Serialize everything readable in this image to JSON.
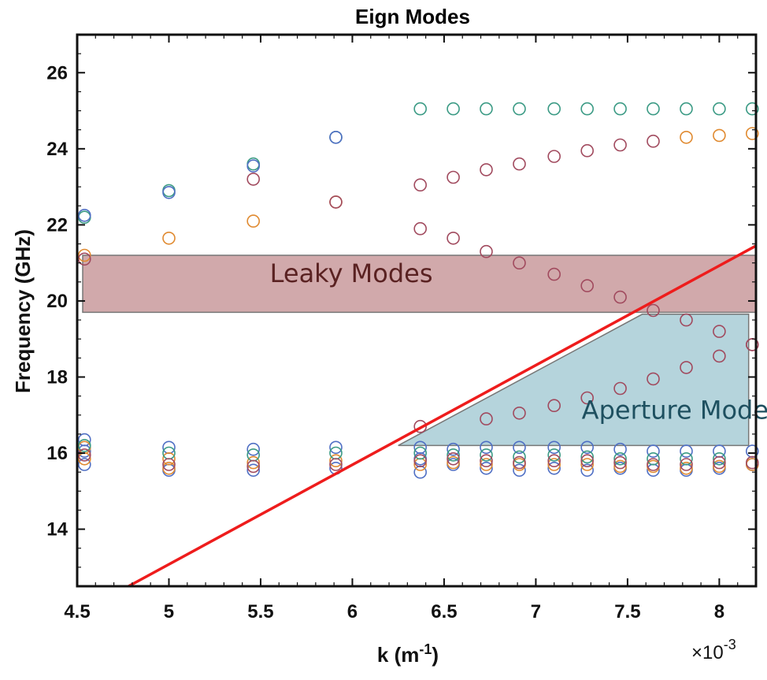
{
  "chart_data": {
    "type": "scatter",
    "title": "Eign Modes",
    "xlabel_base": "k (m",
    "xlabel_exp": "-1",
    "xlabel_tail": ")",
    "xexp_base": "×10",
    "xexp_power": "-3",
    "ylabel": "Frequency (GHz)",
    "xlim": [
      4.5,
      8.2
    ],
    "ylim": [
      12.5,
      27.0
    ],
    "xticks": [
      4.5,
      5,
      5.5,
      6,
      6.5,
      7,
      7.5,
      8
    ],
    "xtick_labels": [
      "4.5",
      "5",
      "5.5",
      "6",
      "6.5",
      "7",
      "7.5",
      "8"
    ],
    "yticks": [
      14,
      16,
      18,
      20,
      22,
      24,
      26
    ],
    "ytick_labels": [
      "14",
      "16",
      "18",
      "20",
      "22",
      "24",
      "26"
    ],
    "grid": false,
    "colors": {
      "teal": "#3a9a84",
      "orange": "#e08a30",
      "maroon": "#a14a5e",
      "blue": "#4f6fc4",
      "line": "#ee1c1c",
      "leaky_fill": "#c99a9c",
      "aperture_fill": "#a8ccd6",
      "text_leaky": "#5a2222",
      "text_aperture": "#1e5060"
    },
    "regions": [
      {
        "label": "Leaky Modes",
        "color": "leaky_fill",
        "text_color": "text_leaky",
        "polygon": [
          [
            4.53,
            21.2
          ],
          [
            8.2,
            21.2
          ],
          [
            8.2,
            19.7
          ],
          [
            4.53,
            19.7
          ]
        ],
        "label_pos": [
          5.55,
          20.5
        ]
      },
      {
        "label": "Aperture Modes",
        "color": "aperture_fill",
        "text_color": "text_aperture",
        "polygon": [
          [
            6.25,
            16.2
          ],
          [
            7.58,
            19.65
          ],
          [
            8.16,
            19.65
          ],
          [
            8.16,
            16.2
          ]
        ],
        "label_pos": [
          7.25,
          16.9
        ]
      }
    ],
    "line": {
      "name": "light line",
      "color": "line",
      "x": [
        4.78,
        8.2
      ],
      "y": [
        12.5,
        21.45
      ]
    },
    "series": [
      {
        "color": "teal",
        "x": [
          4.54,
          5.0,
          5.46,
          5.91,
          6.37,
          6.55,
          6.73,
          6.91,
          7.1,
          7.28,
          7.46,
          7.64,
          7.82,
          8.0,
          8.18
        ],
        "y": [
          22.2,
          22.9,
          23.6,
          24.3,
          25.05,
          25.05,
          25.05,
          25.05,
          25.05,
          25.05,
          25.05,
          25.05,
          25.05,
          25.05,
          25.05
        ]
      },
      {
        "color": "blue",
        "x": [
          4.54,
          5.0,
          5.46,
          5.91
        ],
        "y": [
          22.25,
          22.85,
          23.55,
          24.3
        ]
      },
      {
        "color": "orange",
        "x": [
          4.54,
          5.0,
          5.46,
          5.91,
          7.82,
          8.0,
          8.18
        ],
        "y": [
          21.2,
          21.65,
          22.1,
          22.6,
          24.3,
          24.35,
          24.4
        ]
      },
      {
        "color": "maroon",
        "x": [
          4.54,
          5.46,
          5.91,
          6.37,
          6.55,
          6.73,
          6.91,
          7.1,
          7.28,
          7.46,
          7.64
        ],
        "y": [
          21.1,
          23.2,
          22.6,
          23.05,
          23.25,
          23.45,
          23.6,
          23.8,
          23.95,
          24.1,
          24.2
        ]
      },
      {
        "color": "maroon",
        "x": [
          6.37,
          6.55,
          6.73,
          6.91,
          7.1,
          7.28,
          7.46,
          7.64,
          7.82,
          8.0,
          8.18
        ],
        "y": [
          21.9,
          21.65,
          21.3,
          21.0,
          20.7,
          20.4,
          20.1,
          19.75,
          19.5,
          19.2,
          18.85
        ]
      },
      {
        "color": "maroon",
        "x": [
          6.37,
          6.73,
          6.91,
          7.1,
          7.28,
          7.46,
          7.64,
          7.82,
          8.0,
          8.18
        ],
        "y": [
          16.7,
          16.9,
          17.05,
          17.25,
          17.45,
          17.7,
          17.95,
          18.25,
          18.55,
          18.85
        ]
      },
      {
        "color": "blue",
        "x": [
          4.54,
          4.54,
          4.54,
          5.0,
          5.0,
          5.46,
          5.46,
          5.91,
          5.91,
          6.37,
          6.37,
          6.37,
          6.55,
          6.55,
          6.73,
          6.73,
          6.91,
          6.91,
          7.1,
          7.1,
          7.28,
          7.28,
          7.46,
          7.46,
          7.64,
          7.64,
          7.82,
          7.82,
          8.0,
          8.0,
          8.18,
          8.18
        ],
        "y": [
          16.35,
          16.05,
          15.7,
          16.15,
          15.55,
          16.1,
          15.55,
          16.15,
          15.6,
          16.15,
          15.85,
          15.5,
          16.1,
          15.7,
          16.15,
          15.6,
          16.15,
          15.55,
          16.15,
          15.6,
          16.15,
          15.55,
          16.1,
          15.6,
          16.05,
          15.55,
          16.05,
          15.55,
          16.05,
          15.6,
          16.05,
          15.7
        ]
      },
      {
        "color": "orange",
        "x": [
          4.54,
          4.54,
          5.0,
          5.0,
          5.46,
          5.91,
          6.37,
          6.55,
          6.73,
          6.91,
          7.1,
          7.28,
          7.46,
          7.64,
          7.82,
          8.0,
          8.18
        ],
        "y": [
          16.15,
          15.85,
          15.85,
          15.6,
          15.75,
          15.8,
          15.7,
          15.75,
          15.7,
          15.7,
          15.7,
          15.7,
          15.65,
          15.65,
          15.6,
          15.65,
          15.7
        ]
      },
      {
        "color": "teal",
        "x": [
          4.54,
          5.0,
          5.46,
          5.91,
          6.37,
          6.55,
          6.73,
          6.91,
          7.1,
          7.28,
          7.46,
          7.64,
          7.82,
          8.0
        ],
        "y": [
          16.2,
          16.0,
          15.95,
          16.0,
          16.0,
          15.95,
          15.95,
          15.9,
          15.95,
          15.9,
          15.85,
          15.85,
          15.85,
          15.85
        ]
      },
      {
        "color": "maroon",
        "x": [
          4.54,
          5.0,
          5.46,
          5.91,
          6.37,
          6.55,
          6.73,
          6.91,
          7.1,
          7.28,
          7.46,
          7.64,
          7.82,
          8.0,
          8.18
        ],
        "y": [
          15.95,
          15.7,
          15.65,
          15.7,
          15.8,
          15.85,
          15.8,
          15.75,
          15.8,
          15.8,
          15.75,
          15.7,
          15.7,
          15.75,
          15.75
        ]
      }
    ]
  }
}
